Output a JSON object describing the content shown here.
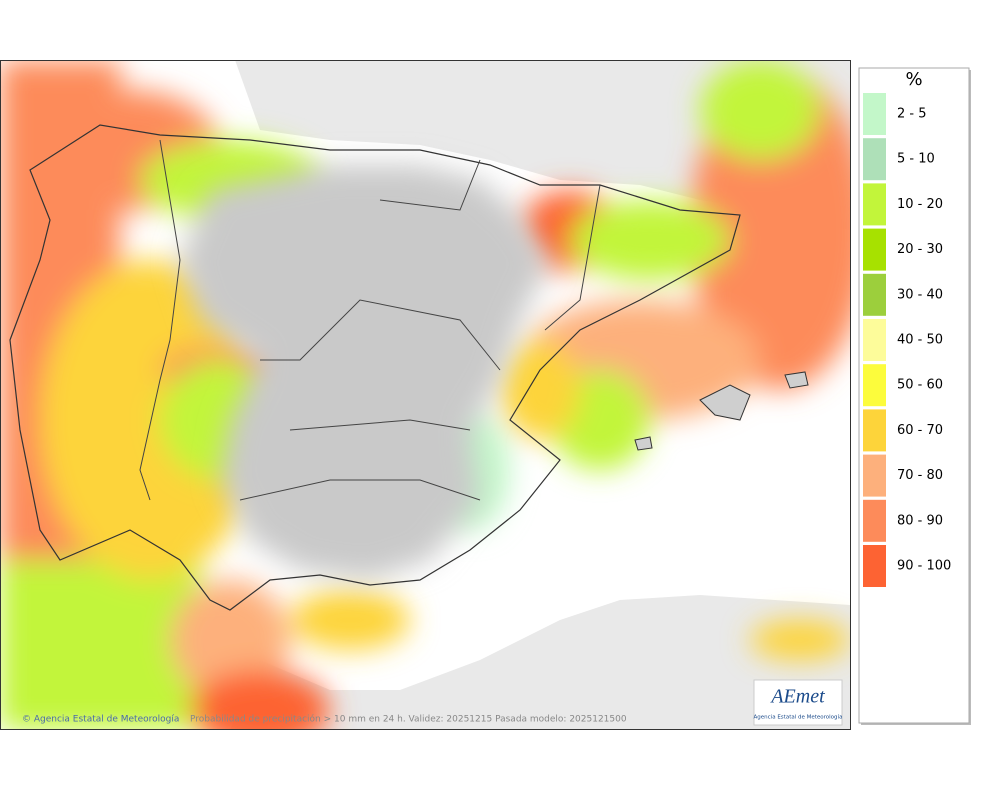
{
  "map": {
    "footer_credit": "© Agencia Estatal de Meteorología",
    "footer_caption": "Probabilidad de precipitación > 10 mm en 24 h. Validez: 20251215 Pasada modelo: 2025121500",
    "logo_text": "AEmet",
    "logo_subtitle": "Agencia Estatal de Meteorología"
  },
  "legend": {
    "title": "%",
    "items": [
      {
        "label": "2 - 5",
        "color": "#c3f7c9"
      },
      {
        "label": "5 - 10",
        "color": "#aee0b8"
      },
      {
        "label": "10 - 20",
        "color": "#c2f53a"
      },
      {
        "label": "20 - 30",
        "color": "#a7e100"
      },
      {
        "label": "30 - 40",
        "color": "#9ccf3c"
      },
      {
        "label": "40 - 50",
        "color": "#fdfc9a"
      },
      {
        "label": "50 - 60",
        "color": "#fcfc3c"
      },
      {
        "label": "60 - 70",
        "color": "#fdd43a"
      },
      {
        "label": "70 - 80",
        "color": "#fdb07c"
      },
      {
        "label": "80 - 90",
        "color": "#fd8b5a"
      },
      {
        "label": "90 - 100",
        "color": "#fd6333"
      }
    ]
  }
}
